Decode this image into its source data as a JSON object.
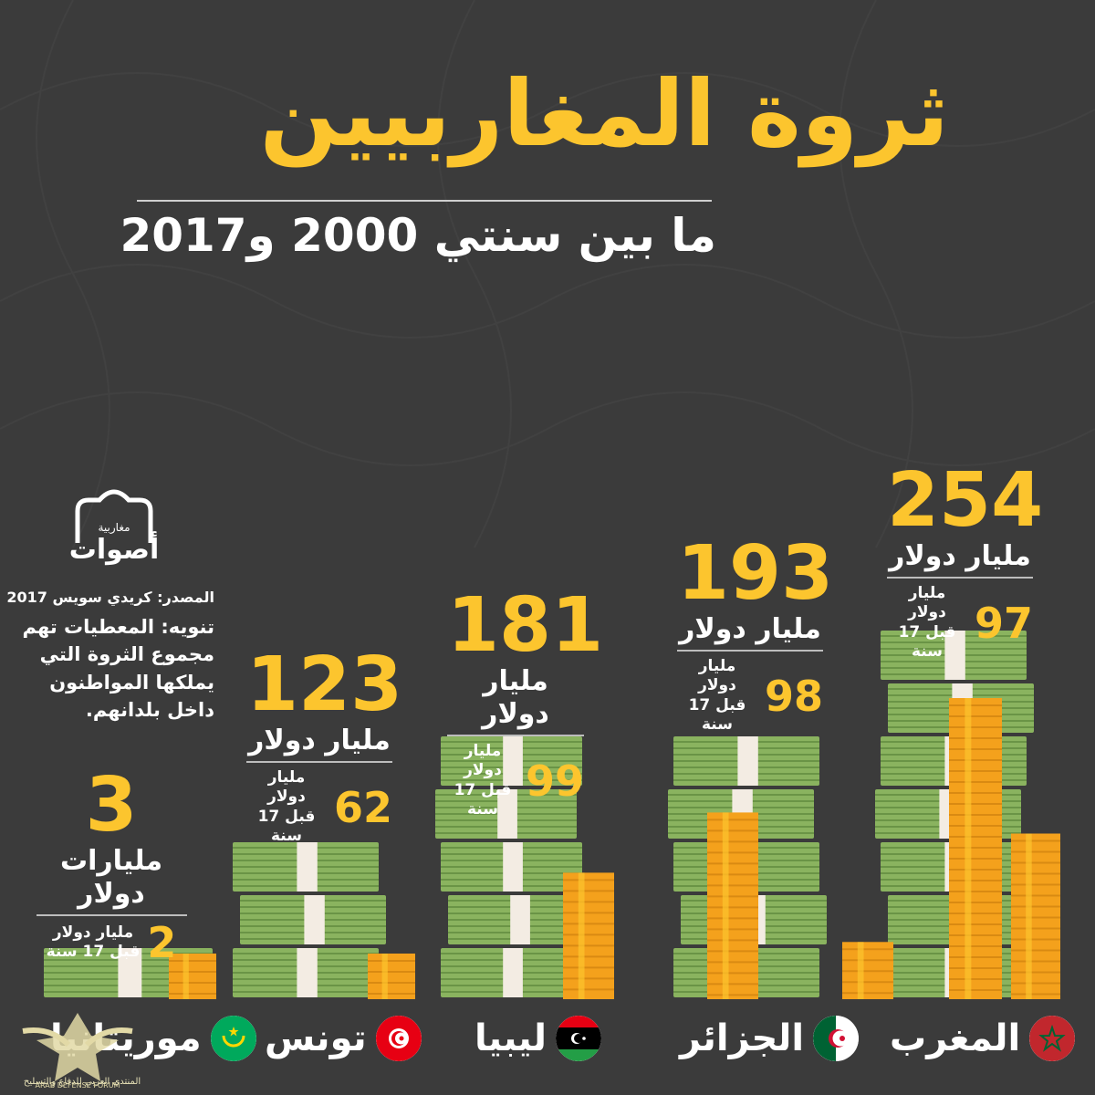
{
  "title": "ثروة المغاربيين",
  "subtitle": "ما بين سنتي 2000 و2017",
  "note": {
    "source": "المصدر: كريدي سويس 2017",
    "disclaimer_lines": [
      "تنويه: المعطيات تهم",
      "مجموع الثروة التي",
      "يملكها المواطنون",
      "داخل بلدانهم."
    ]
  },
  "logo": {
    "line1": "مغاربية",
    "line2": "أصوات"
  },
  "watermark": {
    "line1": "ARAB DEFENSE FORUM",
    "line2": "المنتدى العربي للدفاع والتسليح"
  },
  "colors": {
    "background": "#3b3b3b",
    "accent": "#fcc52e",
    "cash": "#8ab35f",
    "cash_dark": "#5f8a3e",
    "coin": "#f4a11c",
    "coin_light": "#fcc52e"
  },
  "chart_data": {
    "type": "bar",
    "categories": [
      "المغرب",
      "الجزائر",
      "ليبيا",
      "تونس",
      "موريتانيا"
    ],
    "series": [
      {
        "name": "2017",
        "values": [
          254,
          193,
          181,
          123,
          3
        ]
      },
      {
        "name": "2000",
        "values": [
          97,
          98,
          99,
          62,
          2
        ]
      }
    ],
    "value_labels": [
      "254",
      "193",
      "181",
      "123",
      "3"
    ],
    "units": [
      "مليار دولار",
      "مليار دولار",
      "مليار دولار",
      "مليار دولار",
      "مليارات دولار"
    ],
    "prev_values": [
      "97",
      "98",
      "99",
      "62",
      "2"
    ],
    "prev_text_line1": "مليار دولار",
    "prev_text_line2": "قبل 17 سنة",
    "flags": [
      "morocco-flag-icon",
      "algeria-flag-icon",
      "libya-flag-icon",
      "tunisia-flag-icon",
      "mauritania-flag-icon"
    ]
  }
}
